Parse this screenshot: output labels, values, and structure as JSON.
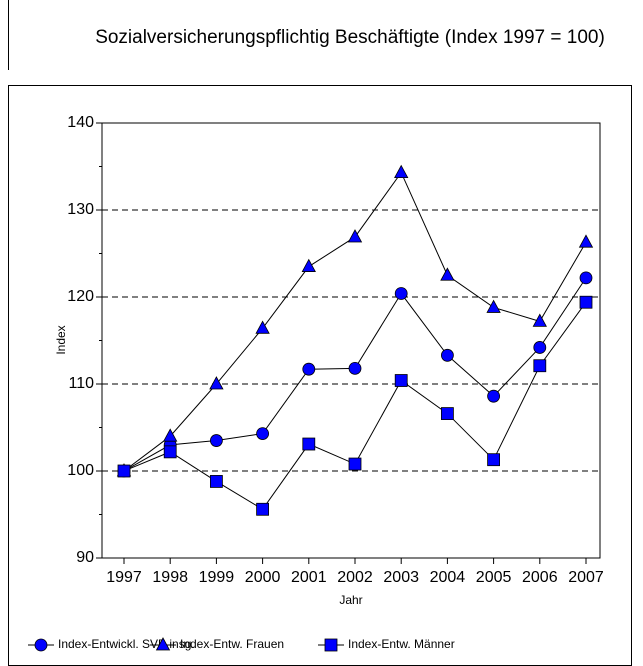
{
  "chart_data": {
    "type": "line",
    "title": "Sozialversicherungspflichtig Beschäftigte (Index 1997 = 100)",
    "x_label": "Jahr",
    "y_label": "Index",
    "categories": [
      "1997",
      "1998",
      "1999",
      "2000",
      "2001",
      "2002",
      "2003",
      "2004",
      "2005",
      "2006",
      "2007"
    ],
    "series": [
      {
        "name": "Index-Entwickl. SVB insg.",
        "color": "#0000ff",
        "marker": "circle",
        "values": [
          100,
          103,
          103.5,
          104.3,
          111.7,
          111.8,
          120.4,
          113.3,
          108.6,
          114.2,
          122.2
        ]
      },
      {
        "name": "Index-Entw. Frauen",
        "color": "#0000ff",
        "marker": "triangle",
        "values": [
          100,
          104,
          110,
          116.4,
          123.5,
          126.9,
          134.3,
          122.5,
          118.8,
          117.2,
          126.3
        ]
      },
      {
        "name": "Index-Entw. Männer",
        "color": "#0000ff",
        "marker": "square",
        "values": [
          100,
          102.2,
          98.8,
          95.6,
          103.1,
          100.8,
          110.4,
          106.6,
          101.3,
          112.1,
          119.4
        ]
      }
    ],
    "ylim": [
      90,
      140
    ],
    "yticks": [
      90,
      100,
      110,
      120,
      130,
      140
    ],
    "grid": true
  }
}
